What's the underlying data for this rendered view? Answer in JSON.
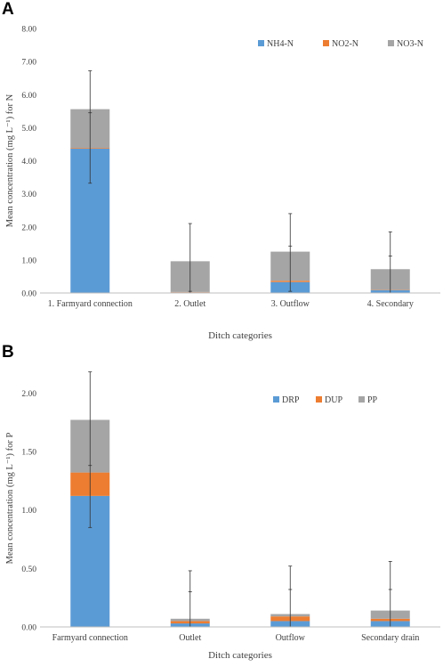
{
  "panels": [
    {
      "letter": "A",
      "chart_data": {
        "type": "bar",
        "stacked": true,
        "categories": [
          "1. Farmyard connection",
          "2. Outlet",
          "3. Outflow",
          "4. Secondary"
        ],
        "series": [
          {
            "name": "NH4-N",
            "color": "#5b9bd5",
            "values": [
              4.37,
              0.02,
              0.33,
              0.08
            ],
            "err_high": [
              5.45,
              0.05,
              1.42,
              1.12
            ]
          },
          {
            "name": "NO2-N",
            "color": "#ed7d31",
            "values": [
              0.02,
              0.01,
              0.04,
              0.01
            ],
            "err_high": [
              null,
              null,
              null,
              null
            ]
          },
          {
            "name": "NO3-N",
            "color": "#a5a5a5",
            "values": [
              1.17,
              0.93,
              0.88,
              0.63
            ],
            "err_high": [
              6.72,
              2.1,
              2.4,
              1.85
            ]
          }
        ],
        "err_low": [
          3.32,
          0.0,
          0.05,
          0.0
        ],
        "xlabel": "Ditch categories",
        "ylabel": "Mean concentration (mg L⁻¹)  for N",
        "yticks": [
          "0.00",
          "1.00",
          "2.00",
          "3.00",
          "4.00",
          "5.00",
          "6.00",
          "7.00",
          "8.00"
        ],
        "ylim": [
          0,
          8
        ],
        "legend_position": "top-right",
        "grid": false
      }
    },
    {
      "letter": "B",
      "chart_data": {
        "type": "bar",
        "stacked": true,
        "categories": [
          "Farmyard connection",
          "Outlet",
          "Outflow",
          "Secondary drain"
        ],
        "series": [
          {
            "name": "DRP",
            "color": "#5b9bd5",
            "values": [
              1.12,
              0.03,
              0.05,
              0.05
            ],
            "err_high": [
              1.38,
              0.3,
              0.32,
              0.32
            ]
          },
          {
            "name": "DUP",
            "color": "#ed7d31",
            "values": [
              0.2,
              0.02,
              0.04,
              0.02
            ],
            "err_high": [
              null,
              null,
              null,
              null
            ]
          },
          {
            "name": "PP",
            "color": "#a5a5a5",
            "values": [
              0.45,
              0.02,
              0.02,
              0.07
            ],
            "err_high": [
              2.18,
              0.48,
              0.52,
              0.56
            ]
          }
        ],
        "err_low": [
          0.85,
          0.0,
          0.0,
          0.0
        ],
        "xlabel": "Ditch categories",
        "ylabel": "Mean concentration (mg L⁻¹)  for P",
        "yticks": [
          "0.00",
          "0.50",
          "1.00",
          "1.50",
          "2.00"
        ],
        "ylim": [
          0,
          2.2
        ],
        "legend_position": "top-right",
        "grid": false
      }
    }
  ]
}
